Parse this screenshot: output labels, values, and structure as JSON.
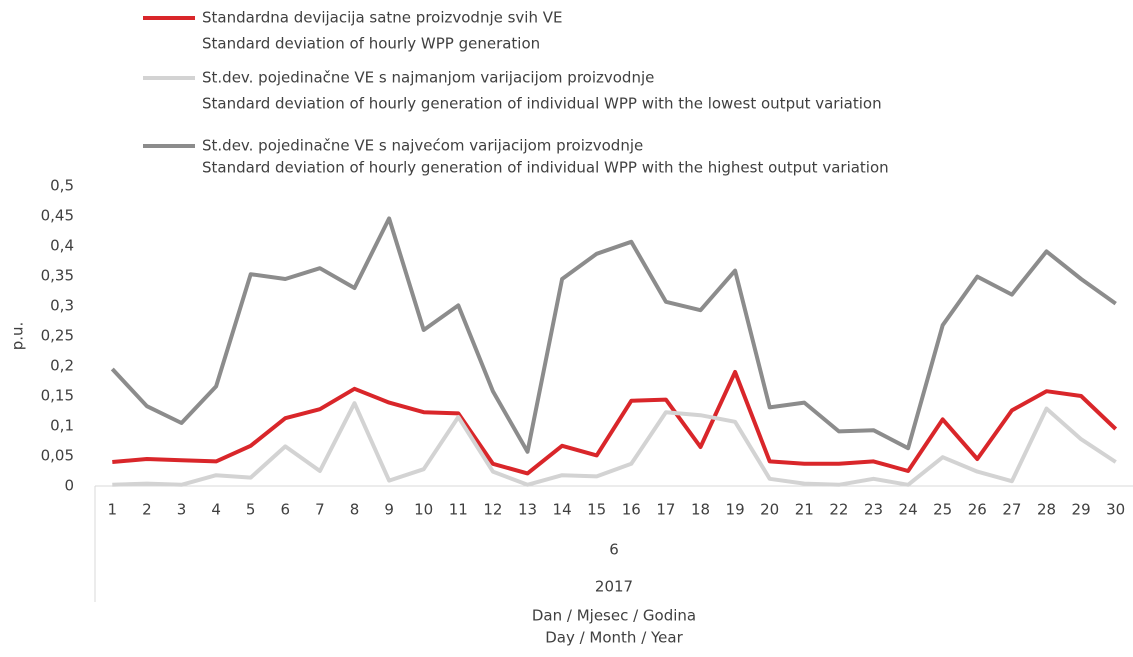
{
  "chart_data": {
    "type": "line",
    "ylabel": "p.u.",
    "xlabel": [
      "Dan / Mjesec / Godina",
      "Day / Month / Year"
    ],
    "category_groups": [
      "6",
      "2017"
    ],
    "categories": [
      "1",
      "2",
      "3",
      "4",
      "5",
      "6",
      "7",
      "8",
      "9",
      "10",
      "11",
      "12",
      "13",
      "14",
      "15",
      "16",
      "17",
      "18",
      "19",
      "20",
      "21",
      "22",
      "23",
      "24",
      "25",
      "26",
      "27",
      "28",
      "29",
      "30"
    ],
    "series": [
      {
        "name": [
          "Standardna devijacija satne proizvodnje svih VE",
          "Standard deviation of hourly WPP generation"
        ],
        "color": "#d9262a",
        "values": [
          0.04,
          0.045,
          0.043,
          0.041,
          0.067,
          0.113,
          0.128,
          0.162,
          0.139,
          0.123,
          0.121,
          0.037,
          0.021,
          0.067,
          0.051,
          0.142,
          0.144,
          0.065,
          0.19,
          0.041,
          0.037,
          0.037,
          0.041,
          0.025,
          0.111,
          0.045,
          0.126,
          0.158,
          0.15,
          0.095
        ]
      },
      {
        "name": [
          "St.dev. pojedinačne VE s najmanjom varijacijom proizvodnje",
          "Standard deviation of hourly generation of individual WPP with the lowest output variation"
        ],
        "color": "#d3d3d3",
        "values": [
          0.002,
          0.004,
          0.002,
          0.018,
          0.014,
          0.066,
          0.025,
          0.138,
          0.009,
          0.028,
          0.115,
          0.024,
          0.002,
          0.018,
          0.016,
          0.037,
          0.123,
          0.118,
          0.107,
          0.012,
          0.004,
          0.002,
          0.012,
          0.002,
          0.048,
          0.024,
          0.008,
          0.129,
          0.078,
          0.04
        ]
      },
      {
        "name": [
          "St.dev. pojedinačne VE s najvećom varijacijom proizvodnje",
          "Standard deviation of hourly generation of individual WPP with the highest output variation"
        ],
        "color": "#8c8c8c",
        "values": [
          0.195,
          0.133,
          0.105,
          0.166,
          0.353,
          0.345,
          0.363,
          0.33,
          0.446,
          0.26,
          0.301,
          0.158,
          0.057,
          0.345,
          0.387,
          0.407,
          0.307,
          0.293,
          0.359,
          0.131,
          0.139,
          0.091,
          0.093,
          0.063,
          0.268,
          0.349,
          0.319,
          0.391,
          0.345,
          0.304
        ]
      }
    ],
    "ylim": [
      0,
      0.5
    ],
    "yticks": [
      0,
      {
        "value": 0.05,
        "label": "0,05"
      },
      {
        "value": 0.1,
        "label": "0,1"
      },
      {
        "value": 0.15,
        "label": "0,15"
      },
      {
        "value": 0.2,
        "label": "0,2"
      },
      {
        "value": 0.25,
        "label": "0,25"
      },
      {
        "value": 0.3,
        "label": "0,3"
      },
      {
        "value": 0.35,
        "label": "0,35"
      },
      {
        "value": 0.4,
        "label": "0,4"
      },
      {
        "value": 0.45,
        "label": "0,45"
      },
      {
        "value": 0.5,
        "label": "0,5"
      }
    ],
    "grid": false
  }
}
